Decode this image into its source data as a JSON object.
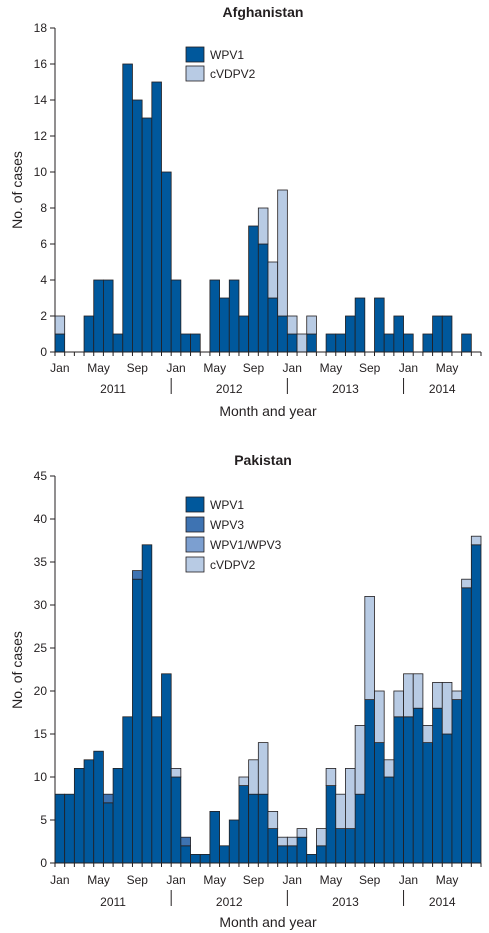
{
  "charts": [
    {
      "title": "Afghanistan",
      "ylabel": "No. of cases",
      "xlabel": "Month and year",
      "yticks": [
        "0",
        "2",
        "4",
        "6",
        "8",
        "10",
        "12",
        "14",
        "16",
        "18"
      ],
      "month_labels": [
        "Jan",
        "May",
        "Sep",
        "Jan",
        "May",
        "Sep",
        "Jan",
        "May",
        "Sep",
        "Jan",
        "May"
      ],
      "year_labels": [
        "2011",
        "2012",
        "2013",
        "2014"
      ],
      "legend": [
        "WPV1",
        "cVDPV2"
      ]
    },
    {
      "title": "Pakistan",
      "ylabel": "No. of cases",
      "xlabel": "Month and year",
      "yticks": [
        "0",
        "5",
        "10",
        "15",
        "20",
        "25",
        "30",
        "35",
        "40",
        "45"
      ],
      "month_labels": [
        "Jan",
        "May",
        "Sep",
        "Jan",
        "May",
        "Sep",
        "Jan",
        "May",
        "Sep",
        "Jan",
        "May"
      ],
      "year_labels": [
        "2011",
        "2012",
        "2013",
        "2014"
      ],
      "legend": [
        "WPV1",
        "WPV3",
        "WPV1/WPV3",
        "cVDPV2"
      ]
    }
  ],
  "chart_data": [
    {
      "type": "bar",
      "stacked": true,
      "title": "Afghanistan",
      "xlabel": "Month and year",
      "ylabel": "No. of cases",
      "ylim": [
        0,
        18
      ],
      "categories": [
        "Jan 2011",
        "Feb 2011",
        "Mar 2011",
        "Apr 2011",
        "May 2011",
        "Jun 2011",
        "Jul 2011",
        "Aug 2011",
        "Sep 2011",
        "Oct 2011",
        "Nov 2011",
        "Dec 2011",
        "Jan 2012",
        "Feb 2012",
        "Mar 2012",
        "Apr 2012",
        "May 2012",
        "Jun 2012",
        "Jul 2012",
        "Aug 2012",
        "Sep 2012",
        "Oct 2012",
        "Nov 2012",
        "Dec 2012",
        "Jan 2013",
        "Feb 2013",
        "Mar 2013",
        "Apr 2013",
        "May 2013",
        "Jun 2013",
        "Jul 2013",
        "Aug 2013",
        "Sep 2013",
        "Oct 2013",
        "Nov 2013",
        "Dec 2013",
        "Jan 2014",
        "Feb 2014",
        "Mar 2014",
        "Apr 2014",
        "May 2014",
        "Jun 2014",
        "Jul 2014",
        "Aug 2014"
      ],
      "series": [
        {
          "name": "WPV1",
          "color": "#00589c",
          "values": [
            1,
            0,
            0,
            2,
            4,
            4,
            1,
            16,
            14,
            13,
            15,
            10,
            4,
            1,
            1,
            0,
            4,
            3,
            4,
            2,
            7,
            6,
            3,
            2,
            1,
            0,
            1,
            0,
            1,
            1,
            2,
            3,
            0,
            3,
            1,
            2,
            1,
            0,
            1,
            2,
            2,
            0,
            1,
            0
          ]
        },
        {
          "name": "cVDPV2",
          "color": "#b8cbe4",
          "values": [
            1,
            0,
            0,
            0,
            0,
            0,
            0,
            0,
            0,
            0,
            0,
            0,
            0,
            0,
            0,
            0,
            0,
            0,
            0,
            0,
            0,
            2,
            2,
            7,
            1,
            1,
            1,
            0,
            0,
            0,
            0,
            0,
            0,
            0,
            0,
            0,
            0,
            0,
            0,
            0,
            0,
            0,
            0,
            0
          ]
        }
      ]
    },
    {
      "type": "bar",
      "stacked": true,
      "title": "Pakistan",
      "xlabel": "Month and year",
      "ylabel": "No. of cases",
      "ylim": [
        0,
        45
      ],
      "categories": [
        "Jan 2011",
        "Feb 2011",
        "Mar 2011",
        "Apr 2011",
        "May 2011",
        "Jun 2011",
        "Jul 2011",
        "Aug 2011",
        "Sep 2011",
        "Oct 2011",
        "Nov 2011",
        "Dec 2011",
        "Jan 2012",
        "Feb 2012",
        "Mar 2012",
        "Apr 2012",
        "May 2012",
        "Jun 2012",
        "Jul 2012",
        "Aug 2012",
        "Sep 2012",
        "Oct 2012",
        "Nov 2012",
        "Dec 2012",
        "Jan 2013",
        "Feb 2013",
        "Mar 2013",
        "Apr 2013",
        "May 2013",
        "Jun 2013",
        "Jul 2013",
        "Aug 2013",
        "Sep 2013",
        "Oct 2013",
        "Nov 2013",
        "Dec 2013",
        "Jan 2014",
        "Feb 2014",
        "Mar 2014",
        "Apr 2014",
        "May 2014",
        "Jun 2014",
        "Jul 2014",
        "Aug 2014"
      ],
      "series": [
        {
          "name": "WPV1",
          "color": "#00589c",
          "values": [
            8,
            8,
            11,
            12,
            13,
            7,
            11,
            17,
            33,
            37,
            17,
            22,
            10,
            2,
            1,
            1,
            6,
            2,
            5,
            9,
            8,
            8,
            4,
            2,
            2,
            3,
            1,
            2,
            9,
            4,
            4,
            8,
            19,
            14,
            10,
            17,
            17,
            18,
            14,
            18,
            15,
            19,
            32,
            37
          ]
        },
        {
          "name": "WPV3",
          "color": "#3e73b2",
          "values": [
            0,
            0,
            0,
            0,
            0,
            1,
            0,
            0,
            1,
            0,
            0,
            0,
            0,
            1,
            0,
            0,
            0,
            0,
            0,
            0,
            0,
            0,
            0,
            0,
            0,
            0,
            0,
            0,
            0,
            0,
            0,
            0,
            0,
            0,
            0,
            0,
            0,
            0,
            0,
            0,
            0,
            0,
            0,
            0
          ]
        },
        {
          "name": "WPV1/WPV3",
          "color": "#7c9fd0",
          "values": [
            0,
            0,
            0,
            0,
            0,
            0,
            0,
            0,
            0,
            0,
            0,
            0,
            0,
            0,
            0,
            0,
            0,
            0,
            0,
            0,
            0,
            0,
            0,
            0,
            0,
            0,
            0,
            0,
            0,
            0,
            0,
            0,
            0,
            0,
            0,
            0,
            0,
            0,
            0,
            0,
            0,
            0,
            0,
            0
          ]
        },
        {
          "name": "cVDPV2",
          "color": "#b8cbe4",
          "values": [
            0,
            0,
            0,
            0,
            0,
            0,
            0,
            0,
            0,
            0,
            0,
            0,
            1,
            0,
            0,
            0,
            0,
            0,
            0,
            1,
            4,
            6,
            2,
            1,
            1,
            1,
            0,
            2,
            2,
            4,
            7,
            8,
            12,
            6,
            2,
            3,
            5,
            4,
            2,
            3,
            6,
            1,
            1,
            1
          ]
        }
      ]
    }
  ]
}
